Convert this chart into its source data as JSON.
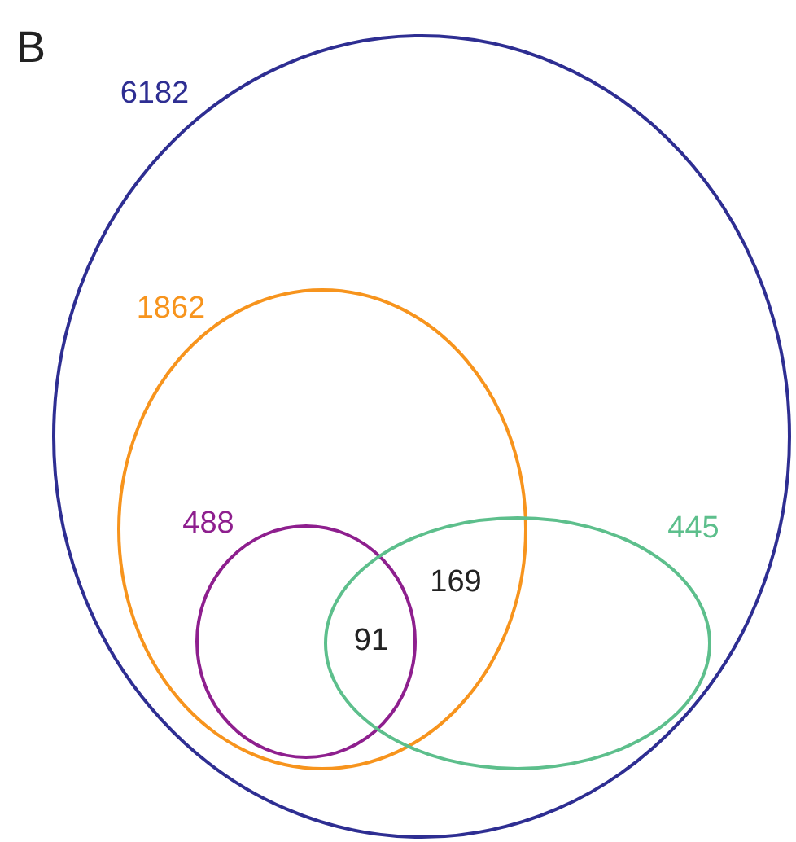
{
  "chart_data": {
    "type": "other",
    "title": "B",
    "categories": [
      null,
      null,
      null,
      null
    ],
    "values": [
      6182,
      1862,
      488,
      445
    ],
    "colors": [
      "#2e2e92",
      "#f7941d",
      "#8e1f8e",
      "#5dbf8c"
    ],
    "data_labels": true,
    "annotations": [
      "169",
      "91"
    ]
  }
}
